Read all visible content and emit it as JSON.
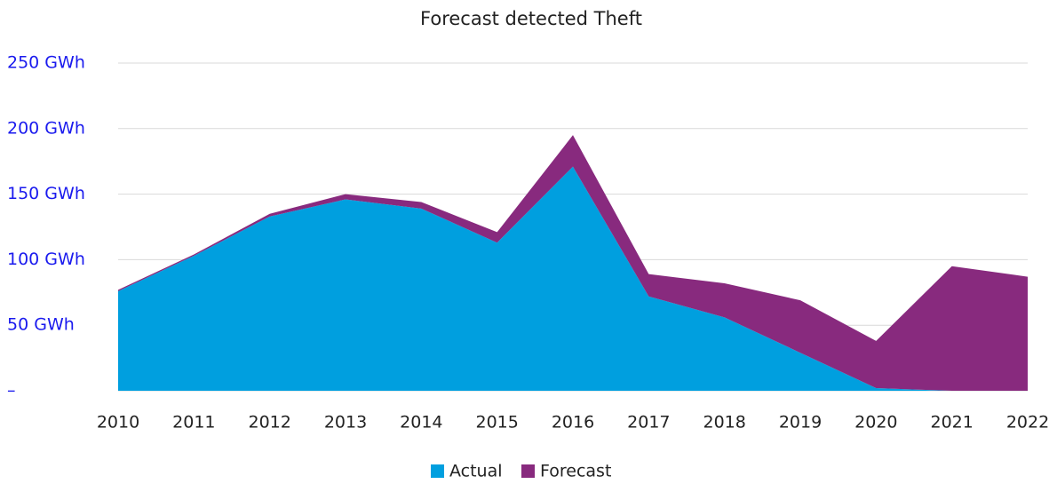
{
  "chart_data": {
    "type": "stacked_area",
    "title": "Forecast detected Theft",
    "categories": [
      "2010",
      "2011",
      "2012",
      "2013",
      "2014",
      "2015",
      "2016",
      "2017",
      "2018",
      "2019",
      "2020",
      "2021",
      "2022"
    ],
    "series": [
      {
        "name": "Actual",
        "color": "#009fdf",
        "values": [
          76,
          103,
          133,
          146,
          139,
          113,
          171,
          72,
          56,
          29,
          2,
          0,
          0
        ]
      },
      {
        "name": "Forecast",
        "color": "#882a7e",
        "values": [
          1,
          1,
          2,
          4,
          5,
          8,
          24,
          17,
          26,
          40,
          36,
          95,
          87
        ]
      }
    ],
    "ylim": [
      0,
      250
    ],
    "yticks": [
      {
        "value": 0,
        "label": "–"
      },
      {
        "value": 50,
        "label": "50 GWh"
      },
      {
        "value": 100,
        "label": "100 GWh"
      },
      {
        "value": 150,
        "label": "150 GWh"
      },
      {
        "value": 200,
        "label": "200 GWh"
      },
      {
        "value": 250,
        "label": "250 GWh"
      }
    ],
    "grid": true,
    "legend": "bottom"
  }
}
